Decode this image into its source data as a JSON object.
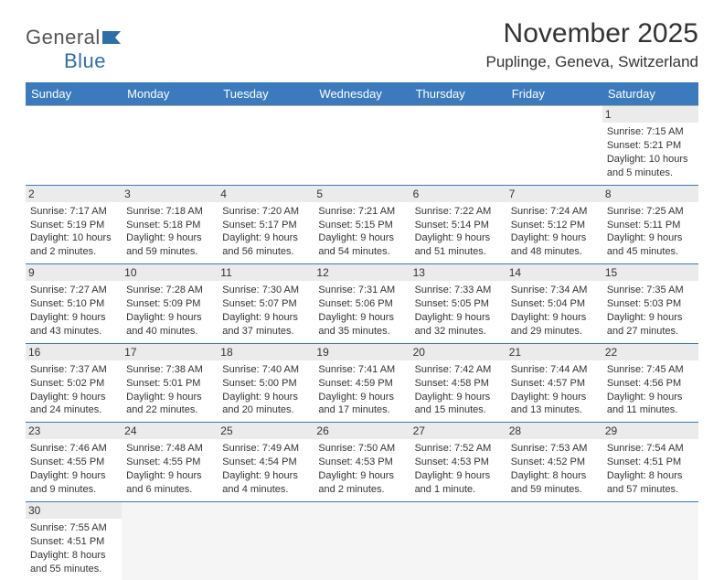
{
  "brand": {
    "name_part1": "General",
    "name_part2": "Blue"
  },
  "title": "November 2025",
  "location": "Puplinge, Geneva, Switzerland",
  "colors": {
    "header_bg": "#3a7abd",
    "header_fg": "#ffffff",
    "row_border": "#3a7abd",
    "daynum_bg": "#ebebeb",
    "text": "#333333",
    "logo_blue": "#2f6fa8",
    "background": "#ffffff"
  },
  "dayHeaders": [
    "Sunday",
    "Monday",
    "Tuesday",
    "Wednesday",
    "Thursday",
    "Friday",
    "Saturday"
  ],
  "weeks": [
    [
      null,
      null,
      null,
      null,
      null,
      null,
      {
        "n": "1",
        "sunrise": "Sunrise: 7:15 AM",
        "sunset": "Sunset: 5:21 PM",
        "daylight1": "Daylight: 10 hours",
        "daylight2": "and 5 minutes."
      }
    ],
    [
      {
        "n": "2",
        "sunrise": "Sunrise: 7:17 AM",
        "sunset": "Sunset: 5:19 PM",
        "daylight1": "Daylight: 10 hours",
        "daylight2": "and 2 minutes."
      },
      {
        "n": "3",
        "sunrise": "Sunrise: 7:18 AM",
        "sunset": "Sunset: 5:18 PM",
        "daylight1": "Daylight: 9 hours",
        "daylight2": "and 59 minutes."
      },
      {
        "n": "4",
        "sunrise": "Sunrise: 7:20 AM",
        "sunset": "Sunset: 5:17 PM",
        "daylight1": "Daylight: 9 hours",
        "daylight2": "and 56 minutes."
      },
      {
        "n": "5",
        "sunrise": "Sunrise: 7:21 AM",
        "sunset": "Sunset: 5:15 PM",
        "daylight1": "Daylight: 9 hours",
        "daylight2": "and 54 minutes."
      },
      {
        "n": "6",
        "sunrise": "Sunrise: 7:22 AM",
        "sunset": "Sunset: 5:14 PM",
        "daylight1": "Daylight: 9 hours",
        "daylight2": "and 51 minutes."
      },
      {
        "n": "7",
        "sunrise": "Sunrise: 7:24 AM",
        "sunset": "Sunset: 5:12 PM",
        "daylight1": "Daylight: 9 hours",
        "daylight2": "and 48 minutes."
      },
      {
        "n": "8",
        "sunrise": "Sunrise: 7:25 AM",
        "sunset": "Sunset: 5:11 PM",
        "daylight1": "Daylight: 9 hours",
        "daylight2": "and 45 minutes."
      }
    ],
    [
      {
        "n": "9",
        "sunrise": "Sunrise: 7:27 AM",
        "sunset": "Sunset: 5:10 PM",
        "daylight1": "Daylight: 9 hours",
        "daylight2": "and 43 minutes."
      },
      {
        "n": "10",
        "sunrise": "Sunrise: 7:28 AM",
        "sunset": "Sunset: 5:09 PM",
        "daylight1": "Daylight: 9 hours",
        "daylight2": "and 40 minutes."
      },
      {
        "n": "11",
        "sunrise": "Sunrise: 7:30 AM",
        "sunset": "Sunset: 5:07 PM",
        "daylight1": "Daylight: 9 hours",
        "daylight2": "and 37 minutes."
      },
      {
        "n": "12",
        "sunrise": "Sunrise: 7:31 AM",
        "sunset": "Sunset: 5:06 PM",
        "daylight1": "Daylight: 9 hours",
        "daylight2": "and 35 minutes."
      },
      {
        "n": "13",
        "sunrise": "Sunrise: 7:33 AM",
        "sunset": "Sunset: 5:05 PM",
        "daylight1": "Daylight: 9 hours",
        "daylight2": "and 32 minutes."
      },
      {
        "n": "14",
        "sunrise": "Sunrise: 7:34 AM",
        "sunset": "Sunset: 5:04 PM",
        "daylight1": "Daylight: 9 hours",
        "daylight2": "and 29 minutes."
      },
      {
        "n": "15",
        "sunrise": "Sunrise: 7:35 AM",
        "sunset": "Sunset: 5:03 PM",
        "daylight1": "Daylight: 9 hours",
        "daylight2": "and 27 minutes."
      }
    ],
    [
      {
        "n": "16",
        "sunrise": "Sunrise: 7:37 AM",
        "sunset": "Sunset: 5:02 PM",
        "daylight1": "Daylight: 9 hours",
        "daylight2": "and 24 minutes."
      },
      {
        "n": "17",
        "sunrise": "Sunrise: 7:38 AM",
        "sunset": "Sunset: 5:01 PM",
        "daylight1": "Daylight: 9 hours",
        "daylight2": "and 22 minutes."
      },
      {
        "n": "18",
        "sunrise": "Sunrise: 7:40 AM",
        "sunset": "Sunset: 5:00 PM",
        "daylight1": "Daylight: 9 hours",
        "daylight2": "and 20 minutes."
      },
      {
        "n": "19",
        "sunrise": "Sunrise: 7:41 AM",
        "sunset": "Sunset: 4:59 PM",
        "daylight1": "Daylight: 9 hours",
        "daylight2": "and 17 minutes."
      },
      {
        "n": "20",
        "sunrise": "Sunrise: 7:42 AM",
        "sunset": "Sunset: 4:58 PM",
        "daylight1": "Daylight: 9 hours",
        "daylight2": "and 15 minutes."
      },
      {
        "n": "21",
        "sunrise": "Sunrise: 7:44 AM",
        "sunset": "Sunset: 4:57 PM",
        "daylight1": "Daylight: 9 hours",
        "daylight2": "and 13 minutes."
      },
      {
        "n": "22",
        "sunrise": "Sunrise: 7:45 AM",
        "sunset": "Sunset: 4:56 PM",
        "daylight1": "Daylight: 9 hours",
        "daylight2": "and 11 minutes."
      }
    ],
    [
      {
        "n": "23",
        "sunrise": "Sunrise: 7:46 AM",
        "sunset": "Sunset: 4:55 PM",
        "daylight1": "Daylight: 9 hours",
        "daylight2": "and 9 minutes."
      },
      {
        "n": "24",
        "sunrise": "Sunrise: 7:48 AM",
        "sunset": "Sunset: 4:55 PM",
        "daylight1": "Daylight: 9 hours",
        "daylight2": "and 6 minutes."
      },
      {
        "n": "25",
        "sunrise": "Sunrise: 7:49 AM",
        "sunset": "Sunset: 4:54 PM",
        "daylight1": "Daylight: 9 hours",
        "daylight2": "and 4 minutes."
      },
      {
        "n": "26",
        "sunrise": "Sunrise: 7:50 AM",
        "sunset": "Sunset: 4:53 PM",
        "daylight1": "Daylight: 9 hours",
        "daylight2": "and 2 minutes."
      },
      {
        "n": "27",
        "sunrise": "Sunrise: 7:52 AM",
        "sunset": "Sunset: 4:53 PM",
        "daylight1": "Daylight: 9 hours",
        "daylight2": "and 1 minute."
      },
      {
        "n": "28",
        "sunrise": "Sunrise: 7:53 AM",
        "sunset": "Sunset: 4:52 PM",
        "daylight1": "Daylight: 8 hours",
        "daylight2": "and 59 minutes."
      },
      {
        "n": "29",
        "sunrise": "Sunrise: 7:54 AM",
        "sunset": "Sunset: 4:51 PM",
        "daylight1": "Daylight: 8 hours",
        "daylight2": "and 57 minutes."
      }
    ],
    [
      {
        "n": "30",
        "sunrise": "Sunrise: 7:55 AM",
        "sunset": "Sunset: 4:51 PM",
        "daylight1": "Daylight: 8 hours",
        "daylight2": "and 55 minutes."
      },
      null,
      null,
      null,
      null,
      null,
      null
    ]
  ]
}
